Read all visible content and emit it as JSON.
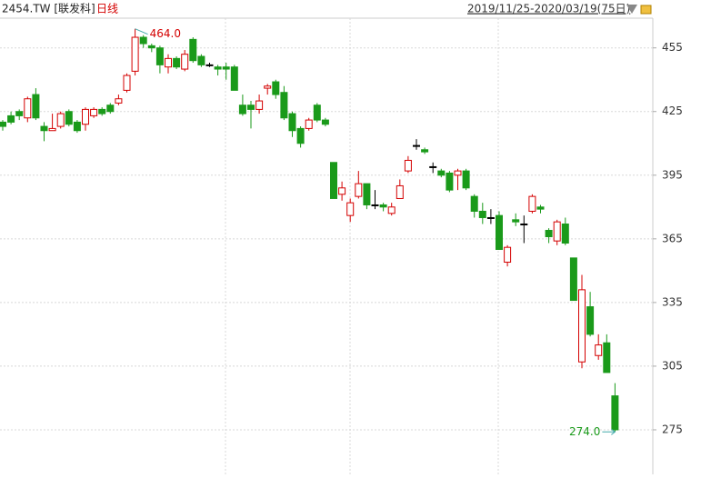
{
  "chart_data": {
    "type": "candlestick",
    "title": "2454.TW [联发科]",
    "subtitle": "日线",
    "date_range": "2019/11/25-2020/03/19(75日)",
    "max_label": "464.0",
    "min_label": "274.0",
    "up_color": "#d40000",
    "down_color": "#1a9a1a",
    "ylim": [
      254,
      469
    ],
    "yticks": [
      275,
      305,
      335,
      365,
      395,
      425,
      455
    ],
    "grid": true,
    "open": [
      420,
      423,
      425,
      422,
      433,
      418,
      416,
      418,
      425,
      420,
      419,
      423,
      426,
      428,
      429,
      435,
      444,
      460,
      456,
      455,
      446,
      450,
      445,
      459,
      451,
      447,
      446,
      446,
      446,
      428,
      428,
      426,
      436,
      439,
      434,
      424,
      417,
      417,
      428,
      421,
      401,
      386,
      376,
      385,
      391,
      381,
      381,
      377,
      384,
      397,
      409,
      407,
      399,
      397,
      396,
      395,
      397,
      385,
      378,
      375,
      376,
      354,
      374,
      372,
      378,
      380,
      369,
      364,
      372,
      356,
      307,
      333,
      310,
      316,
      291
    ],
    "high": [
      421,
      425,
      426,
      432,
      436,
      420,
      424,
      425,
      426,
      421,
      427,
      427,
      427,
      429,
      433,
      443,
      464,
      461,
      457,
      456,
      452,
      451,
      454,
      460,
      452,
      448,
      447,
      448,
      447,
      433,
      430,
      433,
      438,
      440,
      437,
      425,
      418,
      422,
      429,
      422,
      401,
      392,
      384,
      397,
      391,
      388,
      382,
      382,
      393,
      404,
      412,
      408,
      401,
      398,
      397,
      398,
      398,
      386,
      382,
      379,
      378,
      362,
      377,
      376,
      386,
      381,
      370,
      374,
      375,
      356,
      348,
      340,
      320,
      320,
      297
    ],
    "low": [
      416,
      419,
      421,
      420,
      421,
      411,
      416,
      417,
      418,
      415,
      416,
      422,
      423,
      424,
      428,
      434,
      442,
      455,
      453,
      443,
      443,
      445,
      444,
      448,
      446,
      446,
      442,
      440,
      435,
      423,
      417,
      424,
      433,
      431,
      421,
      413,
      408,
      416,
      420,
      418,
      384,
      383,
      373,
      384,
      379,
      379,
      378,
      376,
      384,
      396,
      407,
      405,
      396,
      394,
      387,
      388,
      388,
      375,
      372,
      372,
      360,
      352,
      371,
      363,
      377,
      377,
      363,
      362,
      362,
      336,
      304,
      319,
      308,
      302,
      274
    ],
    "close": [
      418,
      420,
      423,
      431,
      422,
      416,
      417,
      424,
      419,
      416,
      426,
      426,
      424,
      425,
      431,
      442,
      460,
      457,
      455,
      447,
      450,
      446,
      452,
      449,
      447,
      447,
      445,
      445,
      435,
      424,
      426,
      430,
      437,
      433,
      422,
      416,
      410,
      421,
      421,
      419,
      384,
      389,
      382,
      391,
      381,
      381,
      380,
      380,
      390,
      402,
      409,
      406,
      399,
      395,
      388,
      397,
      389,
      378,
      375,
      375,
      360,
      361,
      373,
      372,
      385,
      379,
      366,
      373,
      363,
      336,
      341,
      320,
      315,
      302,
      275
    ]
  }
}
